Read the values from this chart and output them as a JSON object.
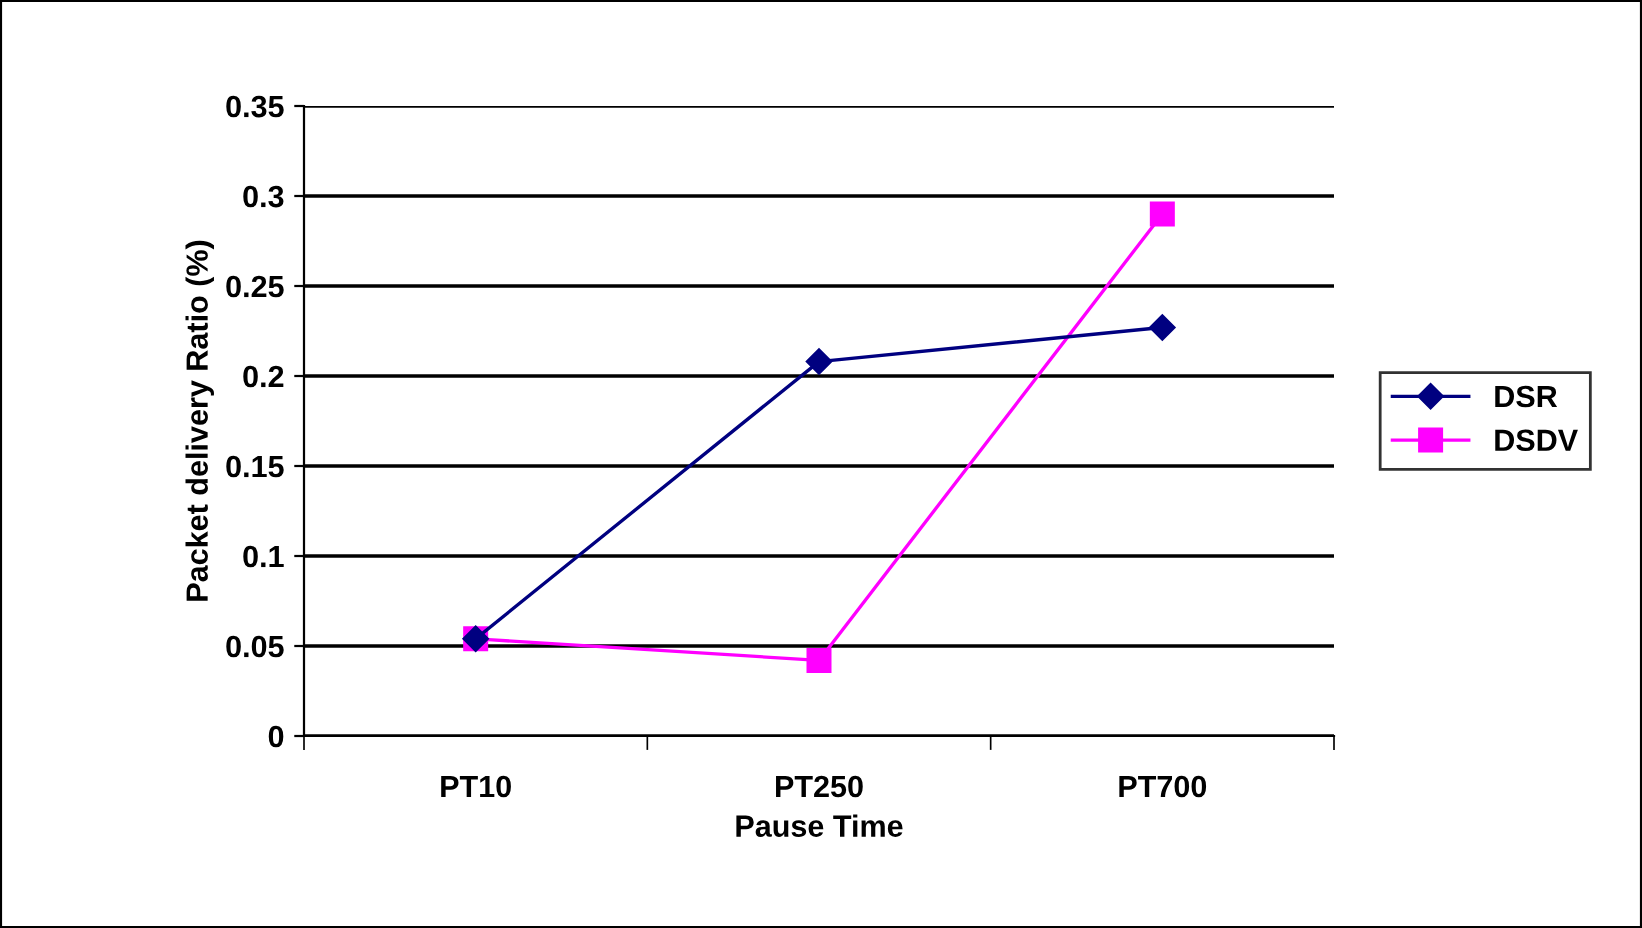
{
  "chart_data": {
    "type": "line",
    "xlabel": "Pause Time",
    "ylabel": "Packet delivery Ratio (%)",
    "categories": [
      "PT10",
      "PT250",
      "PT700"
    ],
    "series": [
      {
        "name": "DSR",
        "color": "#000080",
        "marker": "diamond",
        "values": [
          0.054,
          0.208,
          0.227
        ]
      },
      {
        "name": "DSDV",
        "color": "#ff00ff",
        "marker": "square",
        "values": [
          0.054,
          0.042,
          0.29
        ]
      }
    ],
    "ylim": [
      0,
      0.35
    ],
    "yticks": [
      0,
      0.05,
      0.1,
      0.15,
      0.2,
      0.25,
      0.3,
      0.35
    ],
    "grid": "y",
    "legend": "right",
    "line_style": "solid"
  }
}
